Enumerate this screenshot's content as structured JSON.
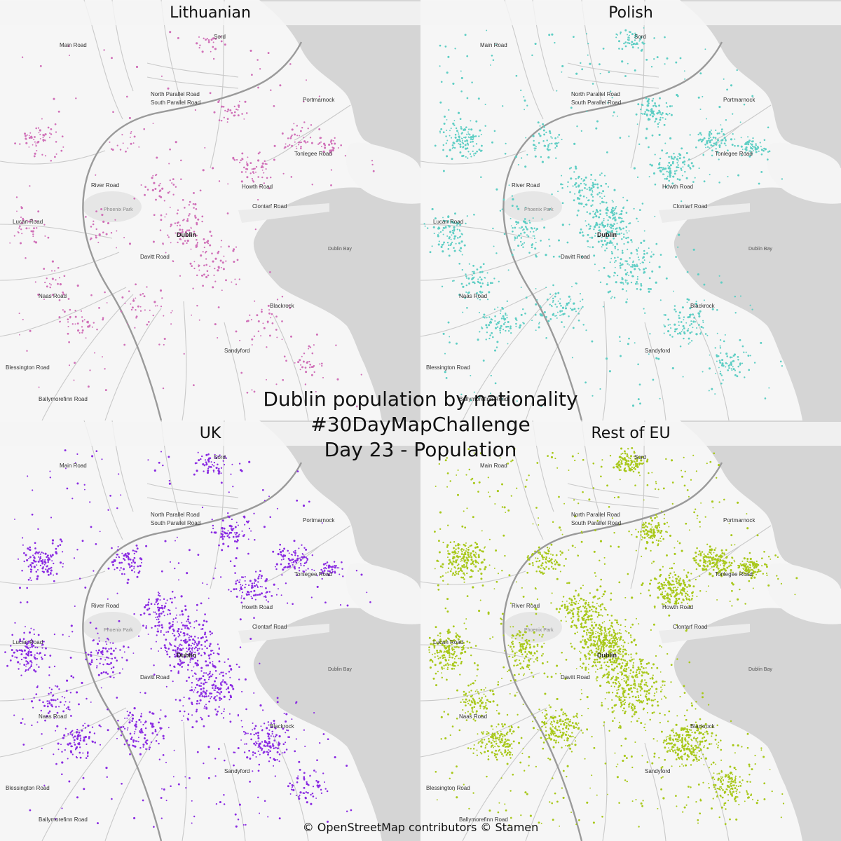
{
  "title": {
    "line1": "Dublin population by nationality",
    "line2": "#30DayMapChallenge",
    "line3": "Day 23 - Population"
  },
  "attribution": "© OpenStreetMap contributors © Stamen",
  "panels": [
    {
      "id": "tl",
      "title": "Lithuanian",
      "color": "#d070b8",
      "density": 0.55
    },
    {
      "id": "tr",
      "title": "Polish",
      "color": "#5ecec4",
      "density": 1.25
    },
    {
      "id": "bl",
      "title": "UK",
      "color": "#8a2be2",
      "density": 1.35
    },
    {
      "id": "br",
      "title": "Rest of EU",
      "color": "#a8c81a",
      "density": 2.4
    }
  ],
  "places": {
    "north_parallel": "North Parallel Road",
    "south_parallel": "South Parallel Road",
    "portmarnock": "Portmarnock",
    "river_road": "River Road",
    "phoenix_park": "Phoenix Park",
    "dublin": "Dublin",
    "dublin_bay": "Dublin Bay",
    "blackrock": "Blackrock",
    "sandyford": "Sandyford",
    "naas_road": "Naas Road",
    "davitt_road": "Davitt Road",
    "clontarf_road": "Clontarf Road",
    "howth_road": "Howth Road",
    "tonlegee_road": "Tonlegee Road",
    "sord": "Sord",
    "malahide_road": "Main Road",
    "blessington_road": "Blessington Road",
    "ballymorefinn_road": "Ballymorefinn Road",
    "lucan": "Lucan Road"
  }
}
